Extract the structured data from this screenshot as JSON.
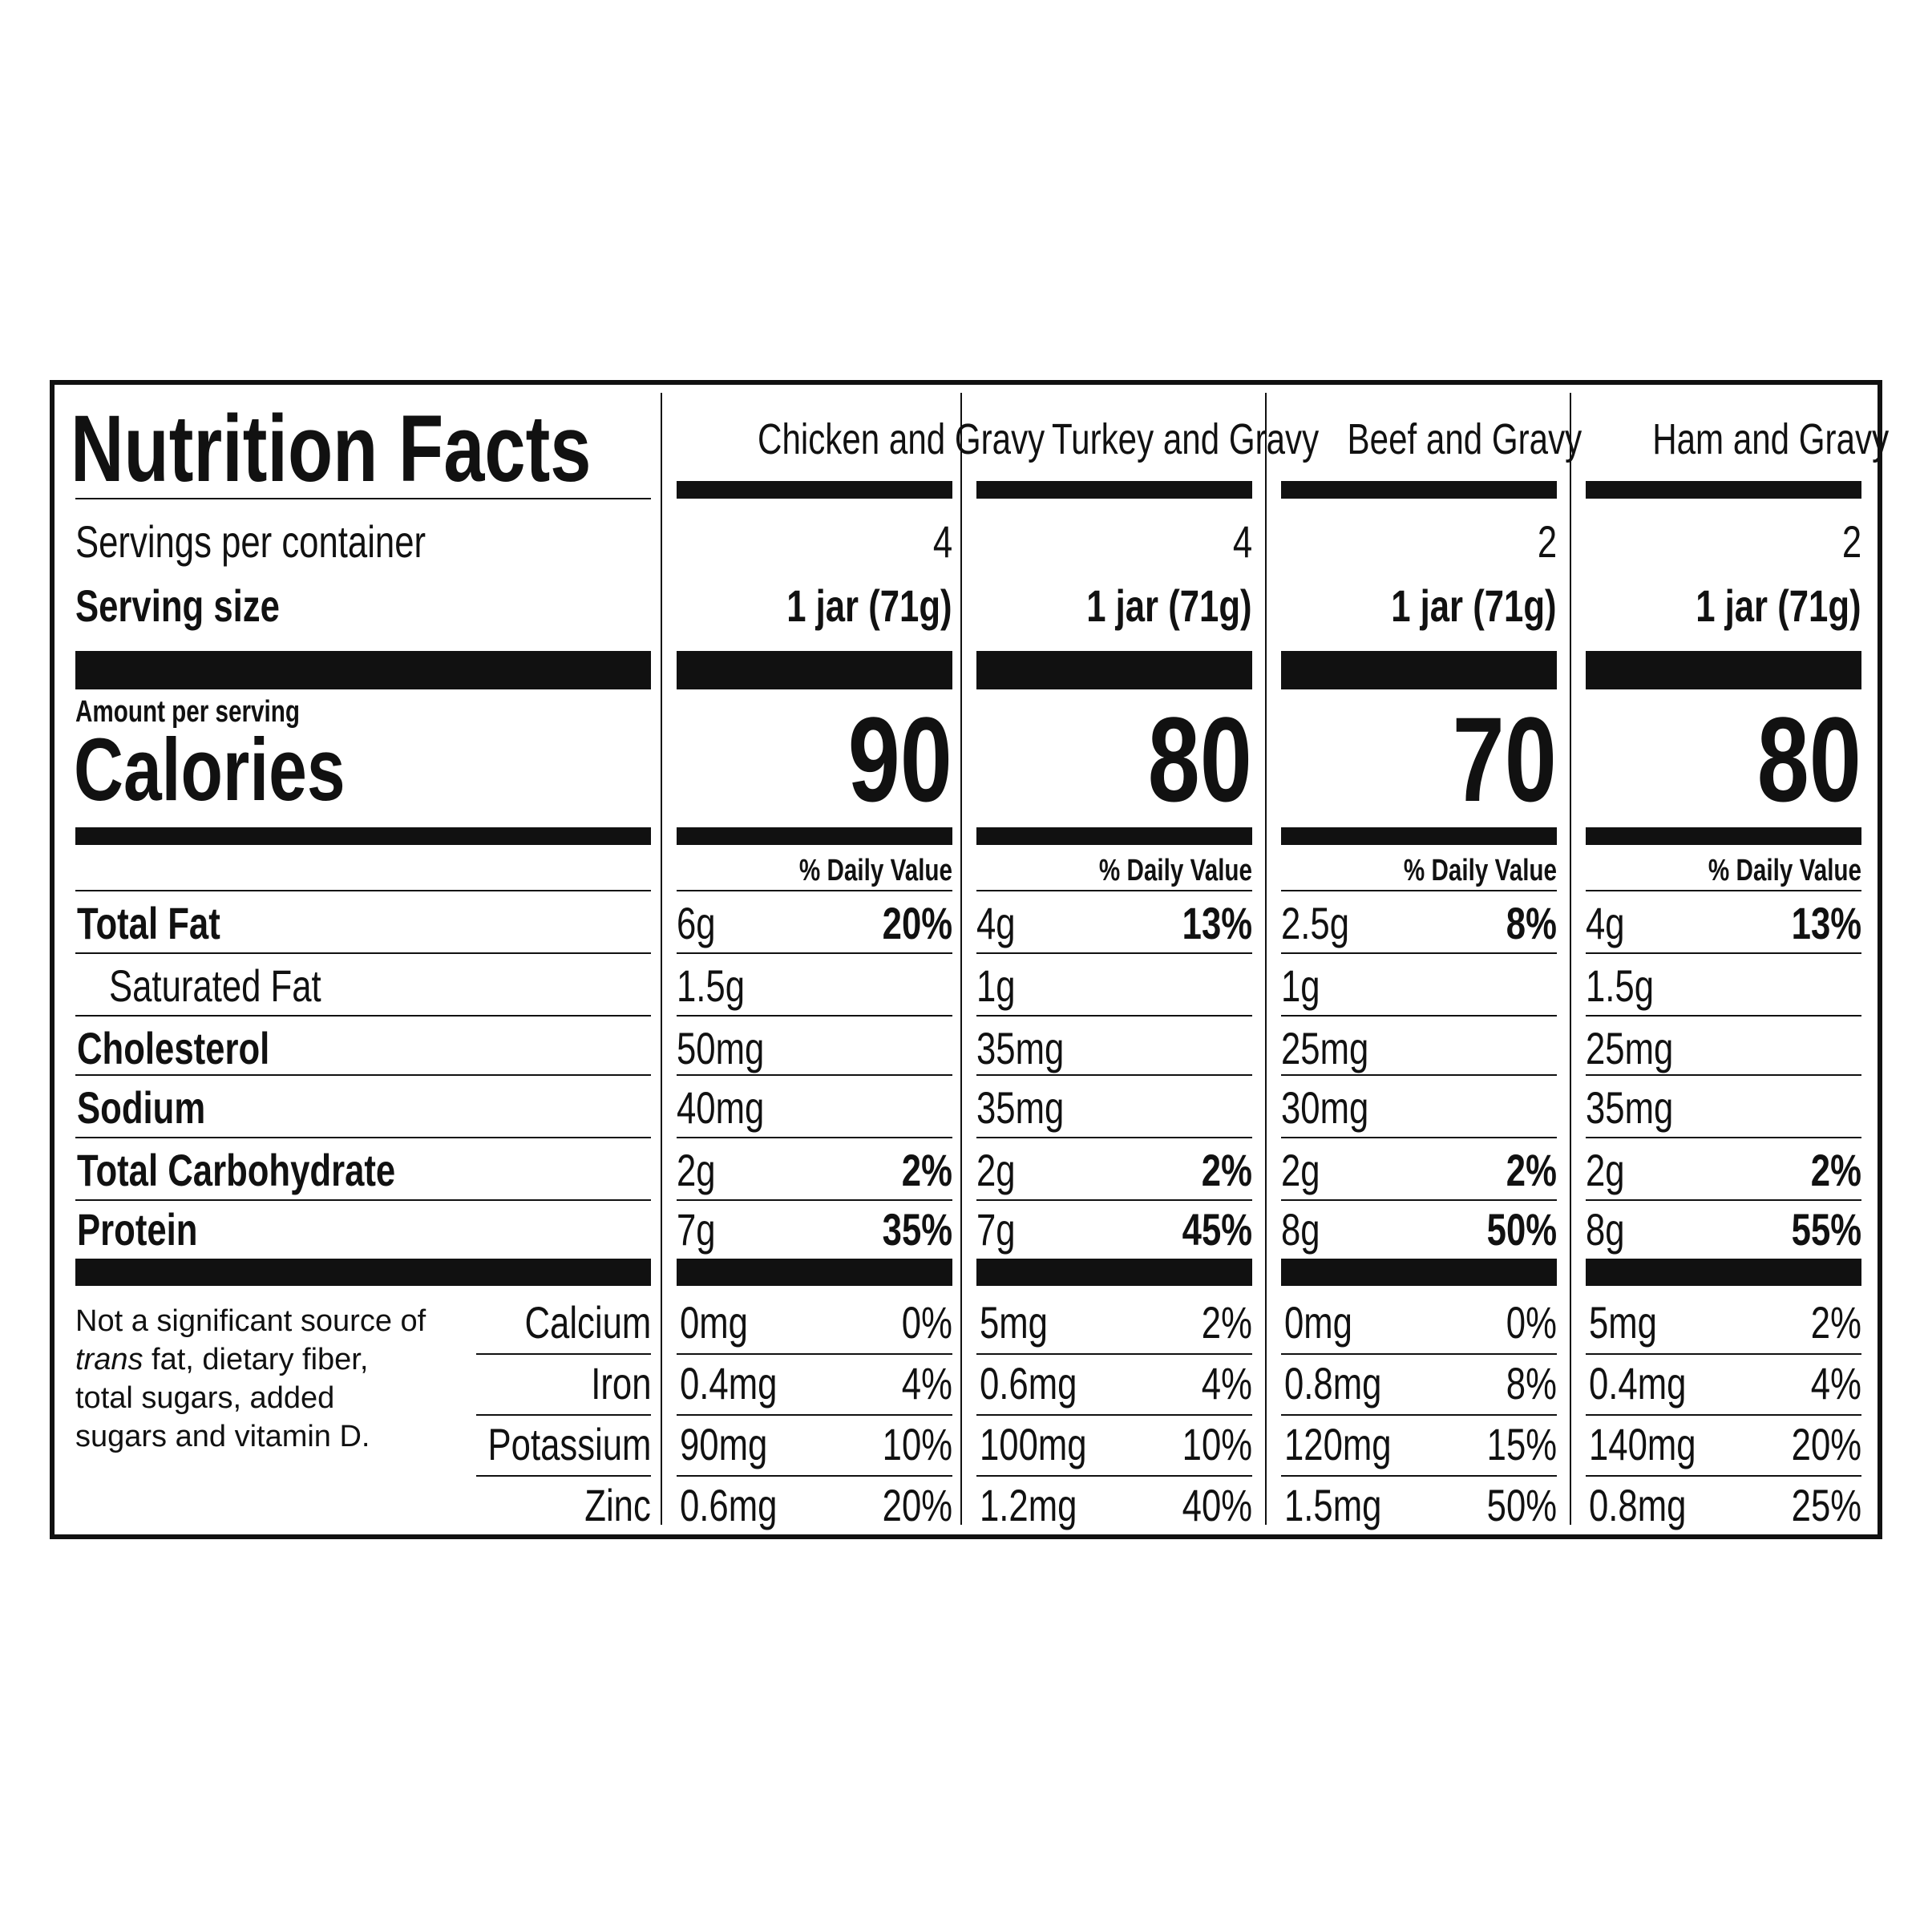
{
  "title": "Nutrition Facts",
  "labels": {
    "servings": "Servings per container",
    "serving_size": "Serving size",
    "amount_per_serving": "Amount per serving",
    "calories": "Calories",
    "daily_value": "% Daily Value"
  },
  "nutrients": {
    "total_fat": "Total Fat",
    "saturated_fat": "Saturated Fat",
    "cholesterol": "Cholesterol",
    "sodium": "Sodium",
    "total_carbohydrate": "Total Carbohydrate",
    "protein": "Protein"
  },
  "footnote": {
    "line1": "Not a significant source of",
    "trans": "trans",
    "rest": " fat, dietary fiber, total sugars, added sugars and vitamin D."
  },
  "minerals": {
    "calcium": "Calcium",
    "iron": "Iron",
    "potassium": "Potassium",
    "zinc": "Zinc"
  },
  "products": [
    {
      "name": "Chicken and Gravy",
      "servings": "4",
      "serving_size": "1 jar (71g)",
      "calories": "90",
      "total_fat": "6g",
      "total_fat_dv": "20%",
      "saturated_fat": "1.5g",
      "cholesterol": "50mg",
      "sodium": "40mg",
      "carb": "2g",
      "carb_dv": "2%",
      "protein": "7g",
      "protein_dv": "35%",
      "calcium": "0mg",
      "calcium_dv": "0%",
      "iron": "0.4mg",
      "iron_dv": "4%",
      "potassium": "90mg",
      "potassium_dv": "10%",
      "zinc": "0.6mg",
      "zinc_dv": "20%"
    },
    {
      "name": "Turkey and Gravy",
      "servings": "4",
      "serving_size": "1 jar (71g)",
      "calories": "80",
      "total_fat": "4g",
      "total_fat_dv": "13%",
      "saturated_fat": "1g",
      "cholesterol": "35mg",
      "sodium": "35mg",
      "carb": "2g",
      "carb_dv": "2%",
      "protein": "7g",
      "protein_dv": "45%",
      "calcium": "5mg",
      "calcium_dv": "2%",
      "iron": "0.6mg",
      "iron_dv": "4%",
      "potassium": "100mg",
      "potassium_dv": "10%",
      "zinc": "1.2mg",
      "zinc_dv": "40%"
    },
    {
      "name": "Beef and Gravy",
      "servings": "2",
      "serving_size": "1 jar (71g)",
      "calories": "70",
      "total_fat": "2.5g",
      "total_fat_dv": "8%",
      "saturated_fat": "1g",
      "cholesterol": "25mg",
      "sodium": "30mg",
      "carb": "2g",
      "carb_dv": "2%",
      "protein": "8g",
      "protein_dv": "50%",
      "calcium": "0mg",
      "calcium_dv": "0%",
      "iron": "0.8mg",
      "iron_dv": "8%",
      "potassium": "120mg",
      "potassium_dv": "15%",
      "zinc": "1.5mg",
      "zinc_dv": "50%"
    },
    {
      "name": "Ham and Gravy",
      "servings": "2",
      "serving_size": "1 jar (71g)",
      "calories": "80",
      "total_fat": "4g",
      "total_fat_dv": "13%",
      "saturated_fat": "1.5g",
      "cholesterol": "25mg",
      "sodium": "35mg",
      "carb": "2g",
      "carb_dv": "2%",
      "protein": "8g",
      "protein_dv": "55%",
      "calcium": "5mg",
      "calcium_dv": "2%",
      "iron": "0.4mg",
      "iron_dv": "4%",
      "potassium": "140mg",
      "potassium_dv": "20%",
      "zinc": "0.8mg",
      "zinc_dv": "25%"
    }
  ]
}
